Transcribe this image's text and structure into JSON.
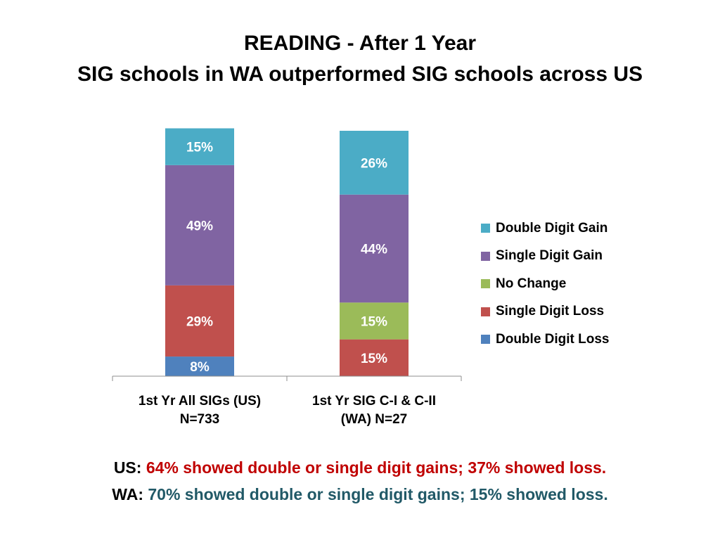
{
  "title": {
    "line1": "READING - After 1 Year",
    "line2": "SIG schools in WA outperformed SIG schools across US"
  },
  "summary": {
    "us_lead": "US:",
    "us_text": "64% showed double or single digit gains; 37% showed loss.",
    "wa_lead": "WA:",
    "wa_text": "70% showed double or single digit gains; 15% showed loss."
  },
  "chart_data": {
    "type": "bar",
    "stacked": true,
    "categories": [
      [
        "1st Yr All SIGs (US)",
        "N=733"
      ],
      [
        "1st Yr SIG C-I & C-II",
        "(WA) N=27"
      ]
    ],
    "series": [
      {
        "name": "Double Digit Loss",
        "color": "#4f81bd",
        "values": [
          8,
          0
        ],
        "labels": [
          "8%",
          ""
        ]
      },
      {
        "name": "Single Digit Loss",
        "color": "#c0504d",
        "values": [
          29,
          15
        ],
        "labels": [
          "29%",
          "15%"
        ]
      },
      {
        "name": "No Change",
        "color": "#9bbb59",
        "values": [
          0,
          15
        ],
        "labels": [
          "",
          "15%"
        ]
      },
      {
        "name": "Single Digit Gain",
        "color": "#8064a2",
        "values": [
          49,
          44
        ],
        "labels": [
          "49%",
          "44%"
        ]
      },
      {
        "name": "Double Digit Gain",
        "color": "#4bacc6",
        "values": [
          15,
          26
        ],
        "labels": [
          "15%",
          "26%"
        ]
      }
    ],
    "legend": {
      "position": "right",
      "order": [
        "Double Digit Gain",
        "Single Digit Gain",
        "No Change",
        "Single Digit Loss",
        "Double Digit Loss"
      ]
    },
    "ylim": [
      0,
      100
    ],
    "grid": false
  }
}
